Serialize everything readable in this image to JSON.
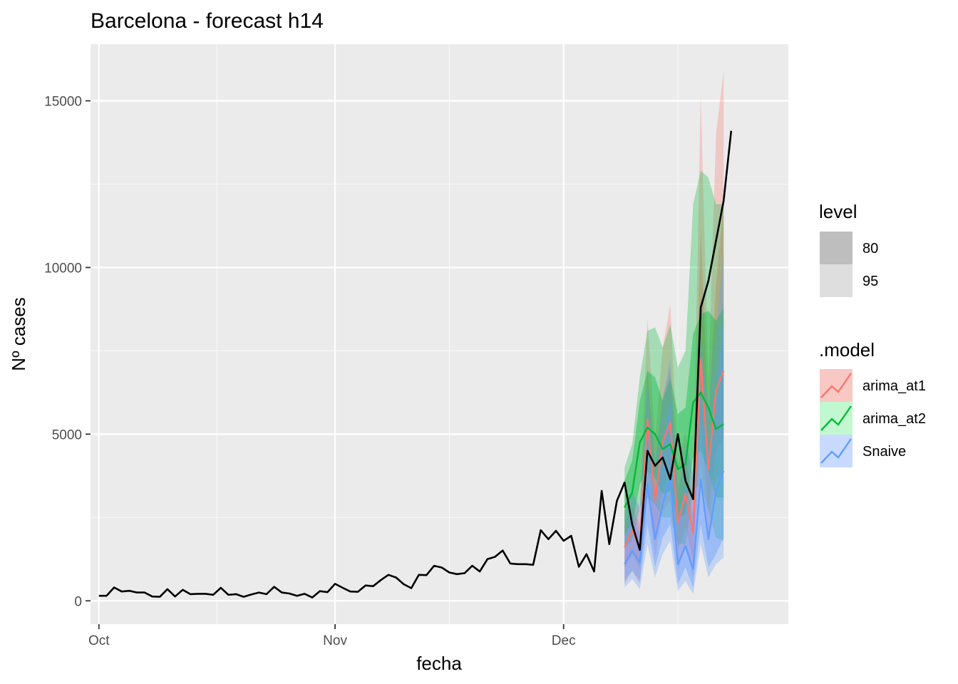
{
  "chart_data": {
    "type": "line",
    "title": "Barcelona - forecast h14",
    "xlabel": "fecha",
    "ylabel": "Nº cases",
    "x_ticks": [
      "Oct",
      "Nov",
      "Dec"
    ],
    "y_ticks": [
      0,
      5000,
      10000,
      15000
    ],
    "ylim": [
      -700,
      16700
    ],
    "grid": true,
    "legend_position": "right",
    "observed": {
      "start_day": 1,
      "values": [
        150,
        150,
        400,
        280,
        300,
        250,
        250,
        130,
        120,
        350,
        130,
        330,
        200,
        210,
        210,
        180,
        390,
        180,
        200,
        120,
        190,
        250,
        200,
        420,
        250,
        220,
        150,
        210,
        100,
        290,
        260,
        510,
        390,
        280,
        270,
        460,
        440,
        620,
        780,
        700,
        500,
        380,
        780,
        770,
        1050,
        1000,
        850,
        800,
        830,
        1050,
        880,
        1250,
        1320,
        1510,
        1120,
        1100,
        1100,
        1080,
        2120,
        1850,
        2100,
        1800,
        1950,
        1020,
        1400,
        880,
        3300,
        1700,
        3000,
        3550,
        2300,
        1530,
        4500,
        4050,
        4300,
        3650,
        5000,
        3600,
        3050,
        8800,
        9600,
        10800,
        12000,
        14100
      ]
    },
    "forecast": {
      "start_day": 70,
      "series": [
        {
          "name": "arima_at1",
          "color": "#F8766D",
          "values": [
            1600,
            2100,
            1600,
            5450,
            3000,
            4750,
            5350,
            2350,
            3200,
            2050,
            7250,
            3950,
            6300,
            6900
          ],
          "lo80": [
            950,
            1400,
            950,
            4000,
            1900,
            3400,
            3850,
            1500,
            2200,
            1250,
            5400,
            2700,
            4500,
            4900
          ],
          "hi80": [
            2300,
            2800,
            2300,
            6900,
            4100,
            6100,
            7000,
            3300,
            4300,
            2900,
            11200,
            5300,
            9500,
            12000
          ],
          "lo95": [
            500,
            900,
            500,
            3200,
            1300,
            2700,
            3000,
            900,
            1600,
            700,
            4200,
            2000,
            3700,
            3800
          ],
          "hi95": [
            2700,
            3300,
            2700,
            8500,
            4800,
            7600,
            8900,
            4100,
            5100,
            3500,
            15200,
            6500,
            14000,
            15900
          ]
        },
        {
          "name": "arima_at2",
          "color": "#00BA38",
          "values": [
            2800,
            3250,
            4750,
            5200,
            5000,
            4550,
            4700,
            3950,
            4100,
            5950,
            6250,
            5800,
            5150,
            5300
          ],
          "lo80": [
            2000,
            2300,
            3500,
            3900,
            3700,
            3200,
            3300,
            2500,
            2600,
            4300,
            4500,
            3900,
            3100,
            3100
          ],
          "hi80": [
            3600,
            4200,
            6000,
            6900,
            6700,
            6000,
            6700,
            5600,
            5800,
            8000,
            8600,
            8700,
            8400,
            8800
          ],
          "lo95": [
            1600,
            1800,
            2800,
            3100,
            2900,
            2500,
            2500,
            1700,
            1700,
            3300,
            3500,
            2700,
            1900,
            1800
          ],
          "hi95": [
            4000,
            4700,
            6700,
            8100,
            8200,
            7600,
            8300,
            7000,
            7500,
            11900,
            12900,
            12700,
            11900,
            11900
          ]
        },
        {
          "name": "Snaive",
          "color": "#619CFF",
          "values": [
            1100,
            1500,
            1150,
            3500,
            1850,
            2900,
            3700,
            1100,
            1650,
            950,
            3650,
            1850,
            3300,
            3900
          ],
          "lo80": [
            600,
            900,
            600,
            2300,
            1000,
            1900,
            2300,
            500,
            1000,
            400,
            2300,
            1000,
            1400,
            1900
          ],
          "hi80": [
            2000,
            2600,
            2000,
            5300,
            3200,
            4700,
            6000,
            2400,
            3500,
            2600,
            6200,
            4500,
            6200,
            8500
          ],
          "lo95": [
            400,
            650,
            350,
            1700,
            700,
            1400,
            1800,
            300,
            600,
            200,
            1700,
            700,
            1100,
            1300
          ],
          "hi95": [
            2600,
            3300,
            2800,
            6700,
            4200,
            6000,
            7300,
            3400,
            4800,
            3800,
            7900,
            5800,
            8100,
            10500
          ]
        }
      ]
    }
  },
  "legend": {
    "level_title": "level",
    "level_items": [
      {
        "label": "80",
        "color": "#BEBEBE"
      },
      {
        "label": "95",
        "color": "#DEDEDE"
      }
    ],
    "model_title": ".model",
    "model_items": [
      {
        "label": "arima_at1",
        "color": "#F8766D",
        "fill": "#F8C8C5"
      },
      {
        "label": "arima_at2",
        "color": "#00BA38",
        "fill": "#C2F8CF"
      },
      {
        "label": "Snaive",
        "color": "#619CFF",
        "fill": "#C8DAFF"
      }
    ]
  }
}
